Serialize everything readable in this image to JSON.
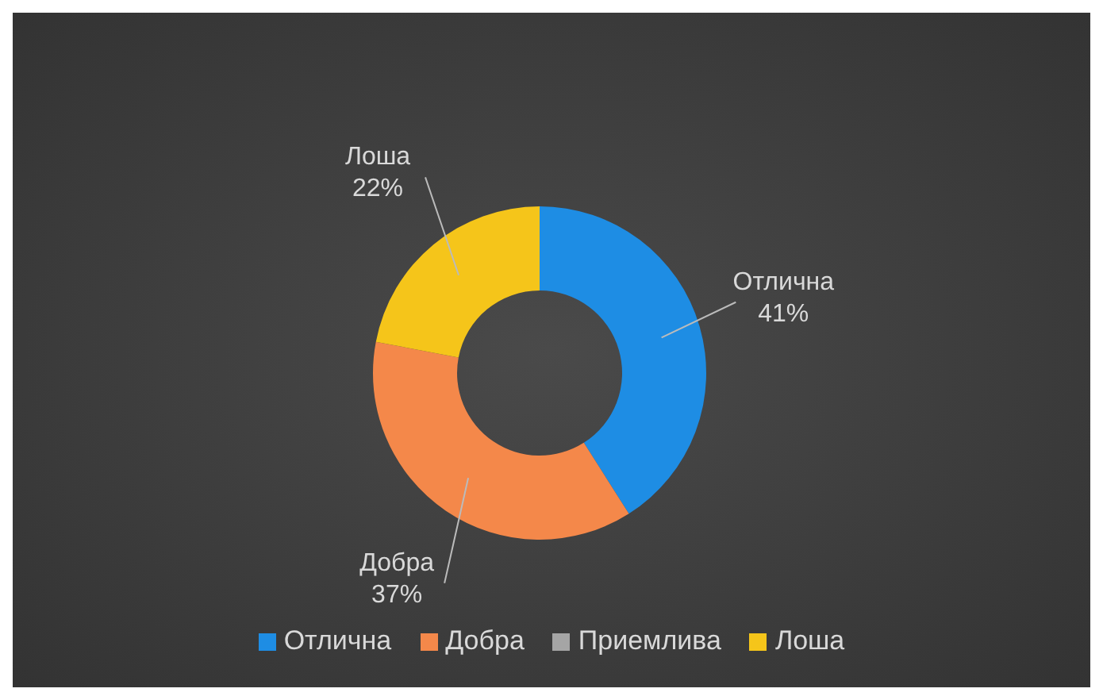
{
  "chart_data": {
    "type": "donut",
    "categories": [
      "Отлична",
      "Добра",
      "Приемлива",
      "Лоша"
    ],
    "values": [
      41,
      37,
      0,
      22
    ],
    "colors": [
      "#1e8de4",
      "#f4884a",
      "#a5a5a5",
      "#f5c51a"
    ],
    "value_labels": [
      "41%",
      "37%",
      null,
      "22%"
    ],
    "legend": "bottom"
  }
}
